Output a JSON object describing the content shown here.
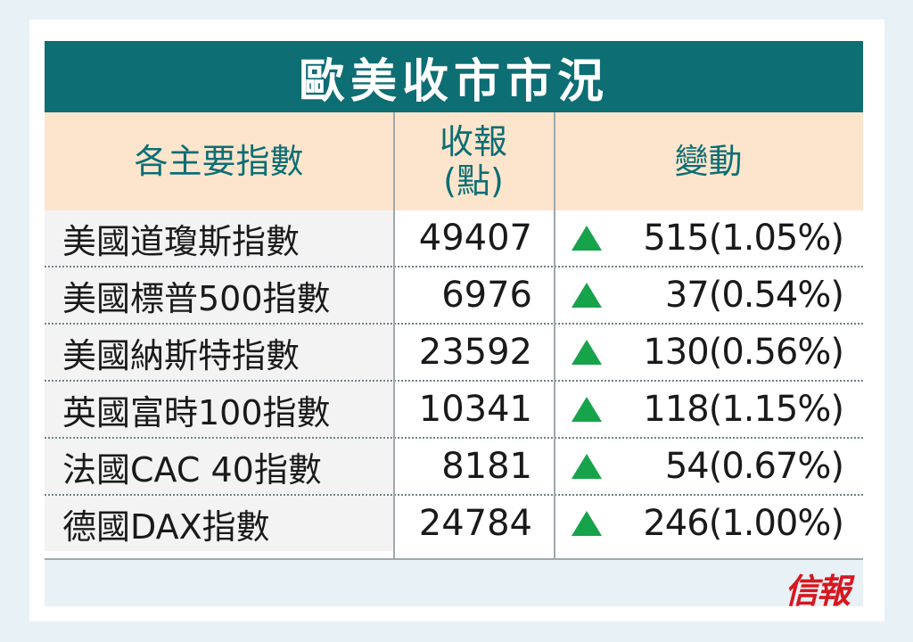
{
  "title": "歐美收市市況",
  "header": {
    "index_label": "各主要指數",
    "close_label_line1": "收報",
    "close_label_line2": "(點)",
    "change_label": "變動"
  },
  "rows": [
    {
      "name": "美國道瓊斯指數",
      "close": "49407",
      "change": "515(1.05%)",
      "direction": "up"
    },
    {
      "name": "美國標普500指數",
      "close": "6976",
      "change": "37(0.54%)",
      "direction": "up"
    },
    {
      "name": "美國納斯特指數",
      "close": "23592",
      "change": "130(0.56%)",
      "direction": "up"
    },
    {
      "name": "英國富時100指數",
      "close": "10341",
      "change": "118(1.15%)",
      "direction": "up"
    },
    {
      "name": "法國CAC 40指數",
      "close": "8181",
      "change": "54(0.67%)",
      "direction": "up"
    },
    {
      "name": "德國DAX指數",
      "close": "24784",
      "change": "246(1.00%)",
      "direction": "up"
    }
  ],
  "brand": "信報",
  "colors": {
    "title_bg": "#0d6e74",
    "header_bg": "#fde5cd",
    "up_arrow": "#16a34a",
    "brand": "#d7171f"
  },
  "icons": {
    "up": "up-triangle-icon"
  }
}
